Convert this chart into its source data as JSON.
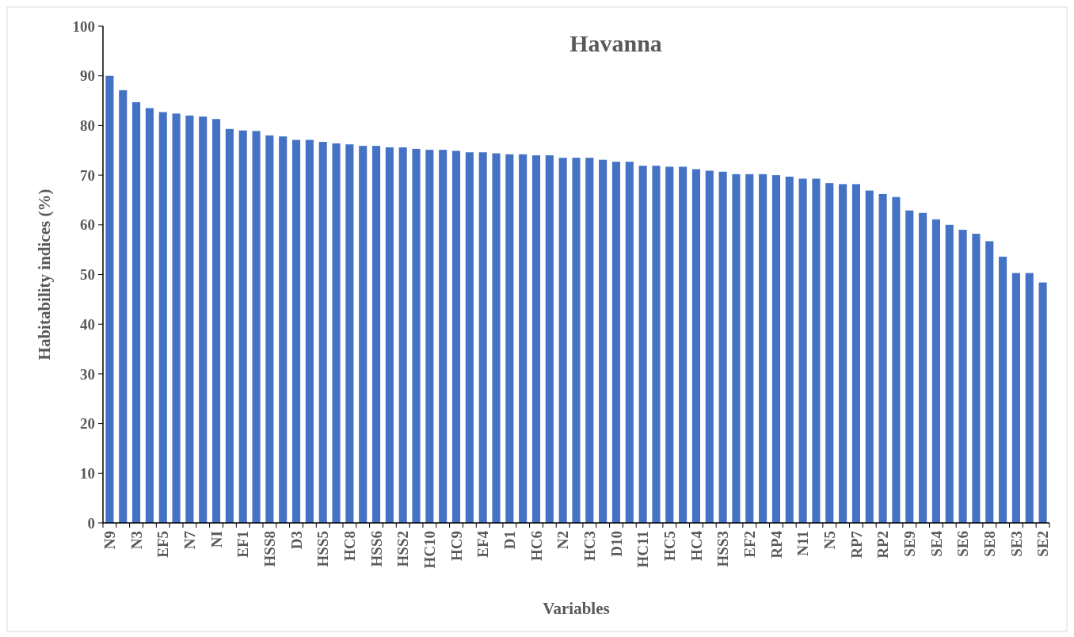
{
  "chart_data": {
    "type": "bar",
    "title": "Havanna",
    "xlabel": "Variables",
    "ylabel": "Habitability indices (%)",
    "categories": [
      "N9",
      null,
      "N3",
      null,
      "EF5",
      null,
      "N7",
      null,
      "NI",
      null,
      "EF1",
      null,
      "HSS8",
      null,
      "D3",
      null,
      "HSS5",
      null,
      "HC8",
      null,
      "HSS6",
      null,
      "HSS2",
      null,
      "HC10",
      null,
      "HC9",
      null,
      "EF4",
      null,
      "D1",
      null,
      "HC6",
      null,
      "N2",
      null,
      "HC3",
      null,
      "D10",
      null,
      "HC11",
      null,
      "HC5",
      null,
      "HC4",
      null,
      "HSS3",
      null,
      "EF2",
      null,
      "RP4",
      null,
      "N11",
      null,
      "N5",
      null,
      "RP7",
      null,
      "RP2",
      null,
      "SE9",
      null,
      "SE4",
      null,
      "SE6",
      null,
      "SE8",
      null,
      "SE3",
      null,
      "SE2"
    ],
    "values": [
      90,
      87.1,
      84.7,
      83.5,
      82.7,
      82.4,
      82.0,
      81.8,
      81.3,
      79.3,
      79.0,
      78.9,
      78.0,
      77.8,
      77.1,
      77.1,
      76.7,
      76.4,
      76.2,
      75.9,
      75.9,
      75.6,
      75.6,
      75.3,
      75.1,
      75.1,
      74.9,
      74.6,
      74.6,
      74.4,
      74.2,
      74.2,
      74.0,
      74.0,
      73.5,
      73.5,
      73.5,
      73.1,
      72.7,
      72.7,
      71.9,
      71.9,
      71.7,
      71.7,
      71.2,
      70.9,
      70.7,
      70.2,
      70.2,
      70.2,
      70.0,
      69.7,
      69.3,
      69.3,
      68.4,
      68.2,
      68.2,
      66.9,
      66.2,
      65.6,
      62.9,
      62.4,
      61.1,
      60.0,
      59.0,
      58.2,
      56.7,
      53.6,
      50.3,
      50.3,
      48.4
    ],
    "color": "#4472c4",
    "ylim": [
      0,
      100
    ],
    "yticks": [
      0,
      10,
      20,
      30,
      40,
      50,
      60,
      70,
      80,
      90,
      100
    ],
    "grid": false
  }
}
